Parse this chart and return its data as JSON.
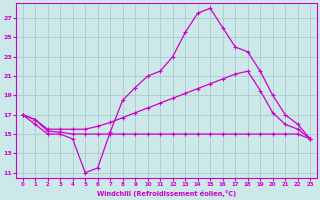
{
  "xlabel": "Windchill (Refroidissement éolien,°C)",
  "bg_color": "#cce8e8",
  "grid_color": "#aacccc",
  "line_color": "#cc00cc",
  "xlim": [
    -0.5,
    23.5
  ],
  "ylim": [
    10.5,
    28.5
  ],
  "yticks": [
    11,
    13,
    15,
    17,
    19,
    21,
    23,
    25,
    27
  ],
  "xticks": [
    0,
    1,
    2,
    3,
    4,
    5,
    6,
    7,
    8,
    9,
    10,
    11,
    12,
    13,
    14,
    15,
    16,
    17,
    18,
    19,
    20,
    21,
    22,
    23
  ],
  "curve1_x": [
    0,
    1,
    2,
    3,
    4,
    5,
    6,
    7,
    8,
    9,
    10,
    11,
    12,
    13,
    14,
    15,
    16,
    17,
    18,
    19,
    20,
    21,
    22,
    23
  ],
  "curve1_y": [
    17,
    16,
    15,
    15,
    14.5,
    11,
    11.5,
    15.2,
    18.5,
    19.8,
    21,
    21.5,
    23,
    25.5,
    27.5,
    28,
    26,
    24,
    23.5,
    21.5,
    19,
    17,
    16,
    14.5
  ],
  "curve2_x": [
    0,
    1,
    2,
    3,
    4,
    5,
    6,
    7,
    8,
    9,
    10,
    11,
    12,
    13,
    14,
    15,
    16,
    17,
    18,
    19,
    20,
    21,
    22,
    23
  ],
  "curve2_y": [
    17,
    16.5,
    15.5,
    15.5,
    15.5,
    15.5,
    15.8,
    16.2,
    16.7,
    17.2,
    17.7,
    18.2,
    18.7,
    19.2,
    19.7,
    20.2,
    20.7,
    21.2,
    21.5,
    19.5,
    17.2,
    16,
    15.5,
    14.5
  ],
  "curve3_x": [
    0,
    1,
    2,
    3,
    4,
    5,
    6,
    7,
    8,
    9,
    10,
    11,
    12,
    13,
    14,
    15,
    16,
    17,
    18,
    19,
    20,
    21,
    22,
    23
  ],
  "curve3_y": [
    17,
    16.5,
    15.3,
    15.2,
    15.0,
    15.0,
    15.0,
    15.0,
    15.0,
    15.0,
    15.0,
    15.0,
    15.0,
    15.0,
    15.0,
    15.0,
    15.0,
    15.0,
    15.0,
    15.0,
    15.0,
    15.0,
    15.0,
    14.5
  ],
  "marker": "+"
}
